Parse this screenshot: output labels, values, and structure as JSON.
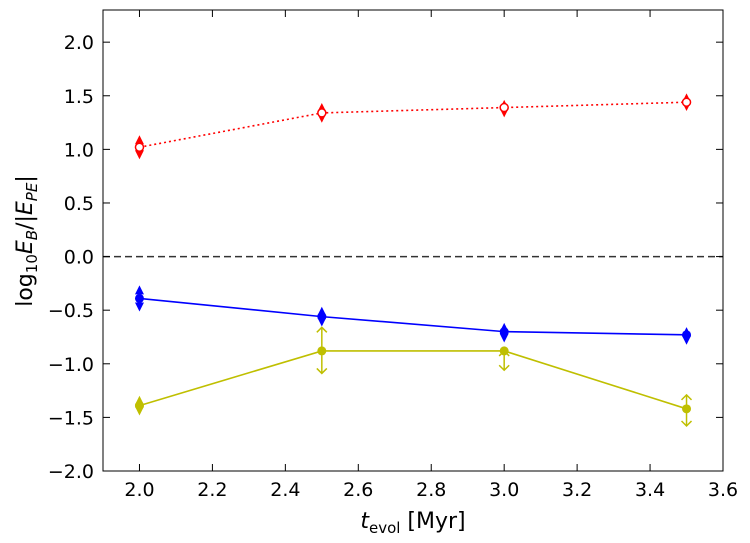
{
  "chart_data": {
    "type": "line",
    "title": "",
    "xlabel": {
      "main": "t",
      "sub": "evol",
      "unit": " [Myr]"
    },
    "ylabel": {
      "prefix": "log",
      "base": "10",
      "e1": "E",
      "e1sub": "B",
      "sep": "/|",
      "e2": "E",
      "e2sub": "PE",
      "suffix": "|"
    },
    "xlim": [
      1.9,
      3.6
    ],
    "ylim": [
      -2.0,
      2.3
    ],
    "xticks": [
      2.0,
      2.2,
      2.4,
      2.6,
      2.8,
      3.0,
      3.2,
      3.4,
      3.6
    ],
    "xtick_labels": [
      "2.0",
      "2.2",
      "2.4",
      "2.6",
      "2.8",
      "3.0",
      "3.2",
      "3.4",
      "3.6"
    ],
    "yticks": [
      -2.0,
      -1.5,
      -1.0,
      -0.5,
      0.0,
      0.5,
      1.0,
      1.5,
      2.0
    ],
    "ytick_labels": [
      "−2.0",
      "−1.5",
      "−1.0",
      "−0.5",
      "0.0",
      "0.5",
      "1.0",
      "1.5",
      "2.0"
    ],
    "reference_line": {
      "y": 0.0,
      "style": "dashed",
      "color": "#333333"
    },
    "series": [
      {
        "name": "red",
        "color": "#ff0000",
        "linestyle": "dotted",
        "marker": "open-circle",
        "x": [
          2.0,
          2.5,
          3.0,
          3.5
        ],
        "values": [
          1.02,
          1.34,
          1.39,
          1.44
        ],
        "error_low": [
          0.07,
          0.05,
          0.05,
          0.04
        ],
        "error_high": [
          0.07,
          0.05,
          0.03,
          0.04
        ],
        "limit": [
          "none",
          "none",
          "none",
          "none"
        ]
      },
      {
        "name": "blue",
        "color": "#0000ff",
        "linestyle": "solid",
        "marker": "filled-circle",
        "x": [
          2.0,
          2.5,
          3.0,
          3.5
        ],
        "values": [
          -0.39,
          -0.56,
          -0.7,
          -0.73
        ],
        "error_low": [
          0.08,
          0.05,
          0.06,
          0.05
        ],
        "error_high": [
          0.08,
          0.05,
          0.04,
          0.03
        ],
        "limit": [
          "none",
          "none",
          "none",
          "none"
        ]
      },
      {
        "name": "yellow",
        "color": "#bfbf00",
        "linestyle": "solid",
        "marker": "filled-circle",
        "x": [
          2.0,
          2.5,
          3.0,
          3.5
        ],
        "values": [
          -1.39,
          -0.88,
          -0.88,
          -1.42
        ],
        "error_low": [
          0.05,
          0.21,
          0.18,
          0.16
        ],
        "error_high": [
          0.05,
          0.22,
          0.0,
          0.13
        ],
        "limit": [
          "none",
          "both",
          "upper",
          "both"
        ]
      }
    ]
  }
}
